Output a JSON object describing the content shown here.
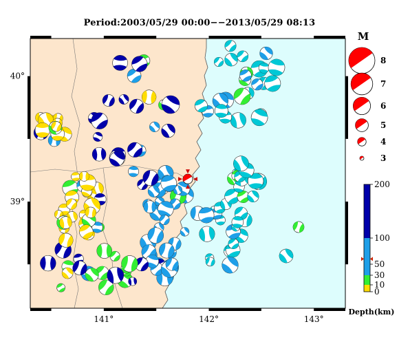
{
  "title": "Period:2003/05/29 00:00−−2013/05/29 08:13",
  "map": {
    "lat_ticks": [
      {
        "value": 40,
        "label": "40°"
      },
      {
        "value": 39,
        "label": "39°"
      }
    ],
    "lon_ticks": [
      {
        "value": 141,
        "label": "141°"
      },
      {
        "value": 142,
        "label": "142°"
      },
      {
        "value": 143,
        "label": "143°"
      }
    ],
    "lon_range": [
      140.3,
      143.3
    ],
    "lat_range": [
      38.15,
      40.3
    ],
    "land_color": "#fde6cc",
    "sea_color": "#ddfdfd",
    "target_event": {
      "lon": 141.8,
      "lat": 39.18,
      "color": "#ff0000",
      "label": "target-event"
    }
  },
  "magnitude_legend": {
    "title": "M",
    "items": [
      {
        "label": "8",
        "mag": 8
      },
      {
        "label": "7",
        "mag": 7
      },
      {
        "label": "6",
        "mag": 6
      },
      {
        "label": "5",
        "mag": 5
      },
      {
        "label": "4",
        "mag": 4
      },
      {
        "label": "3",
        "mag": 3
      }
    ],
    "color": "#ff0000"
  },
  "depth_scale": {
    "label": "Depth(km)",
    "ticks": [
      "200",
      "100",
      "50",
      "30",
      "10",
      "0"
    ],
    "bands": [
      {
        "from": 0,
        "to": 10,
        "color": "#ffdd00"
      },
      {
        "from": 10,
        "to": 30,
        "color": "#33ee33"
      },
      {
        "from": 30,
        "to": 100,
        "color": "#1e9fe8"
      },
      {
        "from": 100,
        "to": 200,
        "color": "#0000aa"
      }
    ],
    "marker_depth": 60,
    "marker_color": "#cc2200"
  },
  "depth_colors": {
    "yellow": "#ffdd00",
    "green": "#33ee33",
    "lightblue": "#1e9fe8",
    "cyan": "#00c8d6",
    "darkblue": "#0000aa"
  }
}
